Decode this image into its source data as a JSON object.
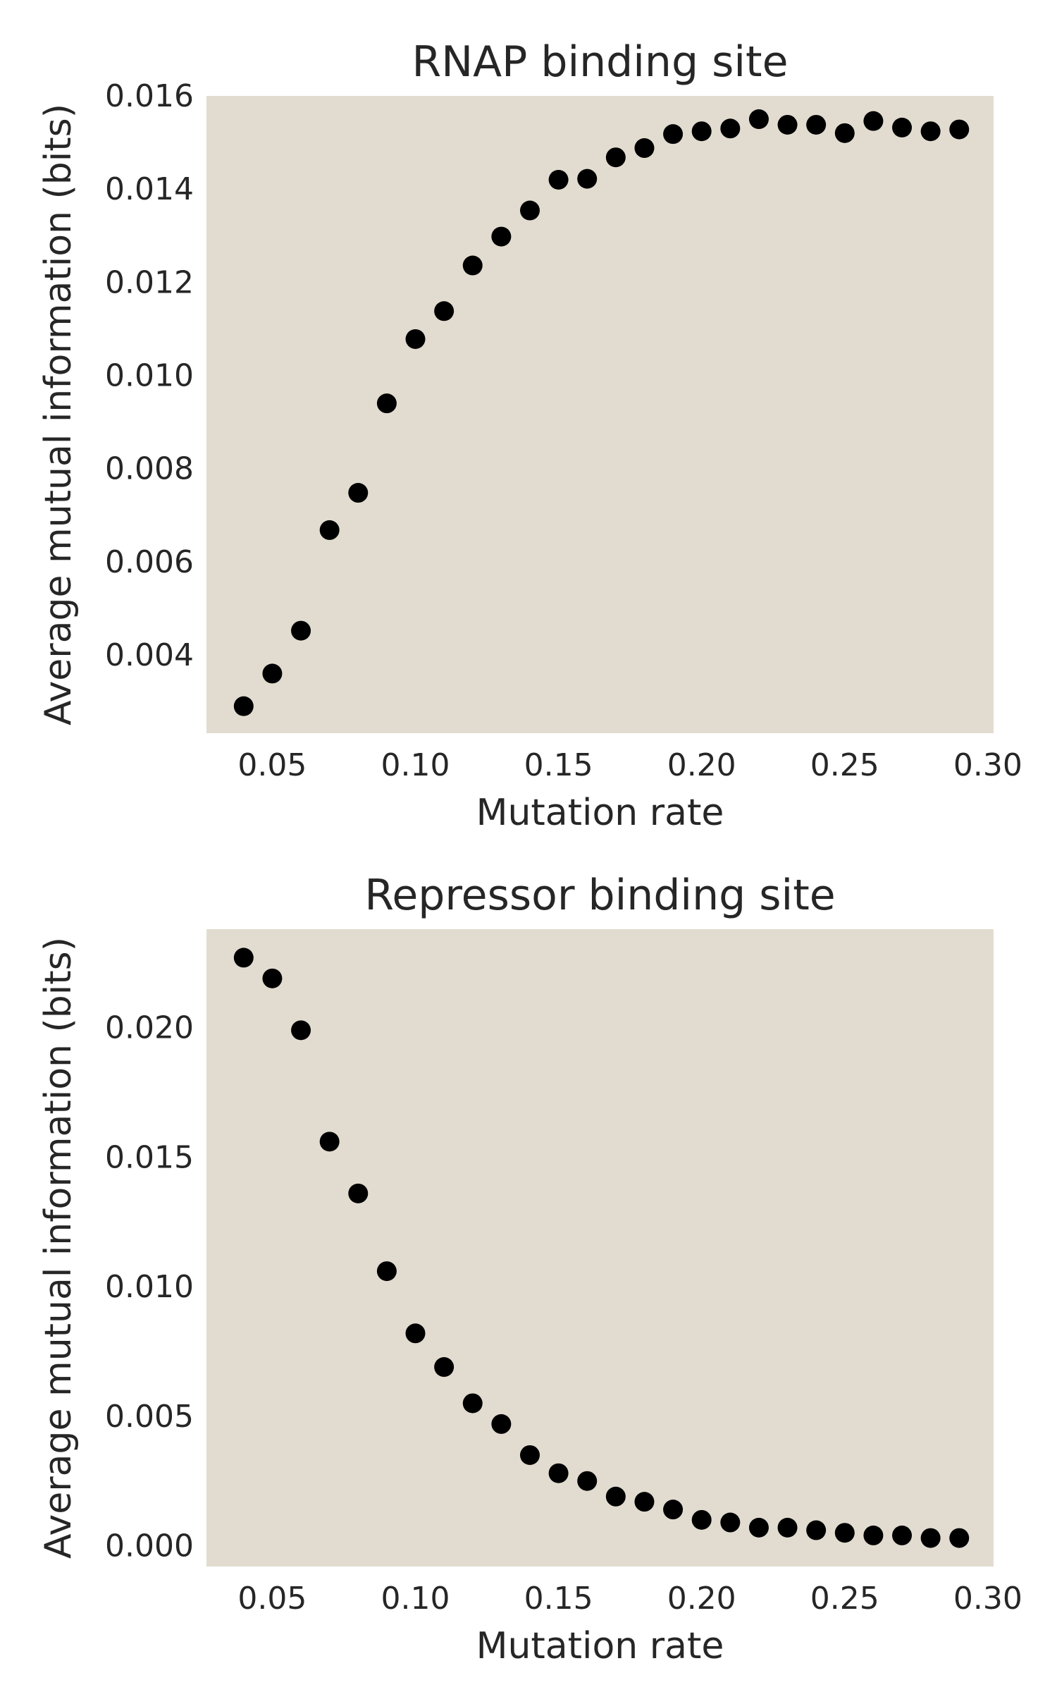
{
  "chart_data": [
    {
      "type": "scatter",
      "title": "RNAP binding site",
      "xlabel": "Mutation rate",
      "ylabel": "Average mutual information (bits)",
      "xlim": [
        0.027,
        0.302
      ],
      "ylim": [
        0.00232,
        0.016
      ],
      "xticks": [
        0.05,
        0.1,
        0.15,
        0.2,
        0.25,
        0.3
      ],
      "xtick_labels": [
        "0.05",
        "0.10",
        "0.15",
        "0.20",
        "0.25",
        "0.30"
      ],
      "yticks": [
        0.004,
        0.006,
        0.008,
        0.01,
        0.012,
        0.014,
        0.016
      ],
      "ytick_labels": [
        "0.004",
        "0.006",
        "0.008",
        "0.010",
        "0.012",
        "0.014",
        "0.016"
      ],
      "grid": false,
      "background_color": "#e2dcd0",
      "marker_color": "#000000",
      "series": [
        {
          "x": [
            0.04,
            0.05,
            0.06,
            0.07,
            0.08,
            0.09,
            0.1,
            0.11,
            0.12,
            0.13,
            0.14,
            0.15,
            0.16,
            0.17,
            0.18,
            0.19,
            0.2,
            0.21,
            0.22,
            0.23,
            0.24,
            0.25,
            0.26,
            0.27,
            0.28,
            0.29
          ],
          "y": [
            0.0029,
            0.0036,
            0.00452,
            0.00668,
            0.00748,
            0.0094,
            0.01078,
            0.01138,
            0.01236,
            0.01298,
            0.01354,
            0.0142,
            0.01422,
            0.01468,
            0.01488,
            0.01518,
            0.01524,
            0.0153,
            0.0155,
            0.01538,
            0.01538,
            0.0152,
            0.01546,
            0.01532,
            0.01524,
            0.01528
          ]
        }
      ]
    },
    {
      "type": "scatter",
      "title": "Repressor binding site",
      "xlabel": "Mutation rate",
      "ylabel": "Average mutual information (bits)",
      "xlim": [
        0.027,
        0.302
      ],
      "ylim": [
        -0.0008,
        0.0238
      ],
      "xticks": [
        0.05,
        0.1,
        0.15,
        0.2,
        0.25,
        0.3
      ],
      "xtick_labels": [
        "0.05",
        "0.10",
        "0.15",
        "0.20",
        "0.25",
        "0.30"
      ],
      "yticks": [
        0.0,
        0.005,
        0.01,
        0.015,
        0.02
      ],
      "ytick_labels": [
        "0.000",
        "0.005",
        "0.010",
        "0.015",
        "0.020"
      ],
      "grid": false,
      "background_color": "#e2dcd0",
      "marker_color": "#000000",
      "series": [
        {
          "x": [
            0.04,
            0.05,
            0.06,
            0.07,
            0.08,
            0.09,
            0.1,
            0.11,
            0.12,
            0.13,
            0.14,
            0.15,
            0.16,
            0.17,
            0.18,
            0.19,
            0.2,
            0.21,
            0.22,
            0.23,
            0.24,
            0.25,
            0.26,
            0.27,
            0.28,
            0.29
          ],
          "y": [
            0.0227,
            0.0219,
            0.0199,
            0.0156,
            0.0136,
            0.0106,
            0.0082,
            0.0069,
            0.0055,
            0.0047,
            0.0035,
            0.0028,
            0.0025,
            0.0019,
            0.0017,
            0.0014,
            0.001,
            0.0009,
            0.0007,
            0.0007,
            0.0006,
            0.0005,
            0.0004,
            0.0004,
            0.0003,
            0.0003
          ]
        }
      ]
    }
  ]
}
